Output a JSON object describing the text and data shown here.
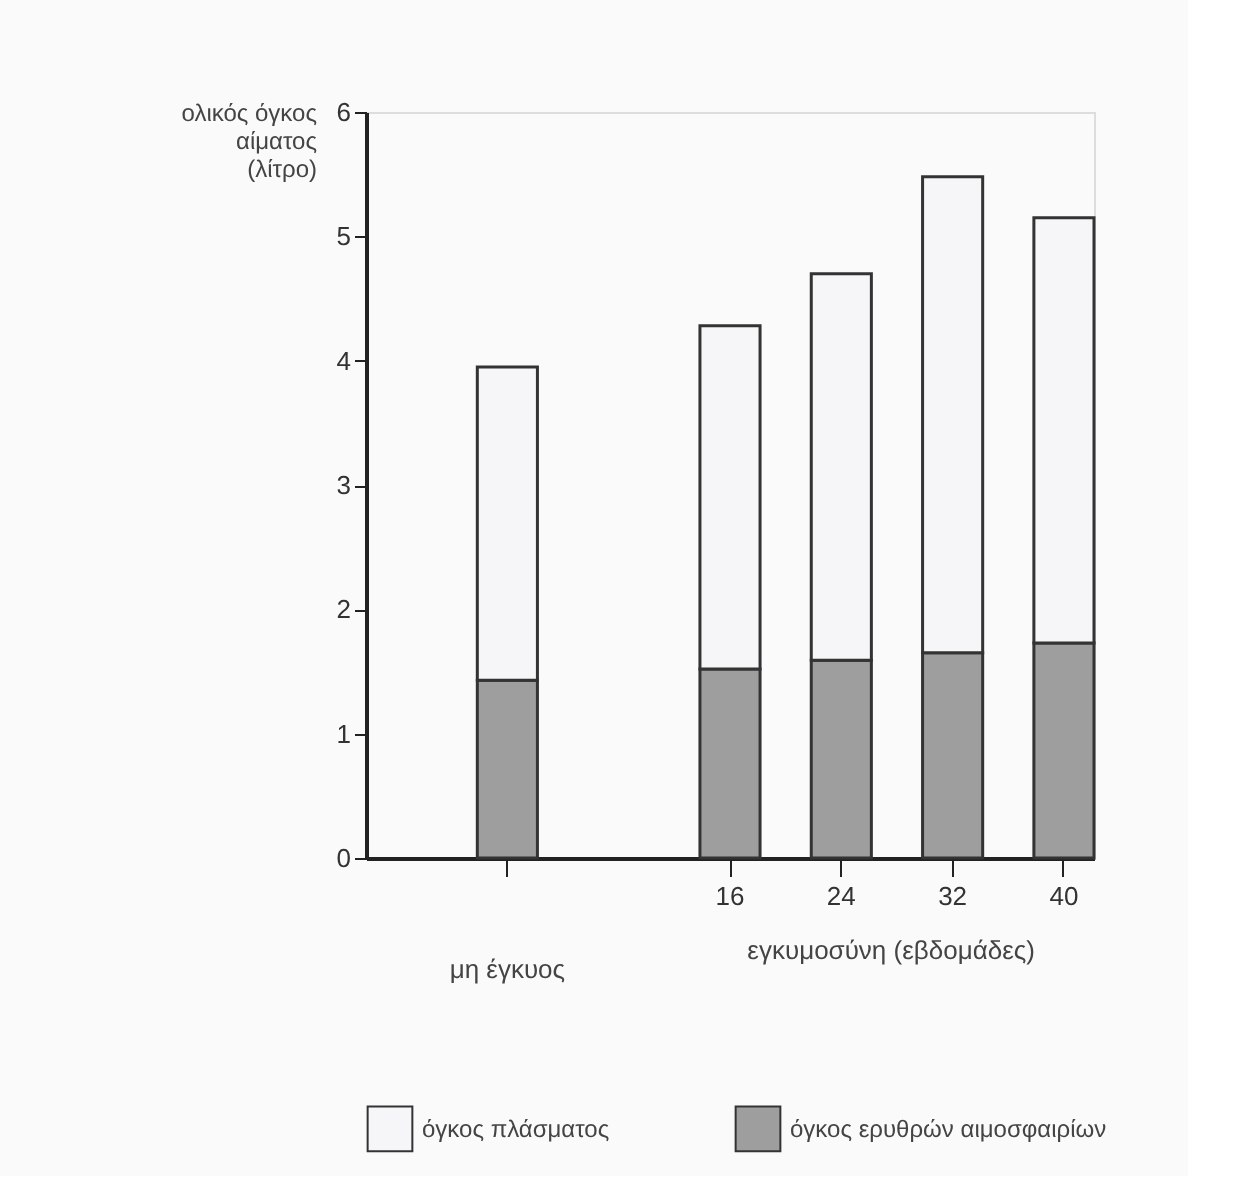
{
  "chart_data": {
    "type": "bar",
    "stacked": true,
    "categories": [
      null,
      null,
      "16",
      "24",
      "32",
      "40"
    ],
    "series": [
      {
        "name": "όγκος ερυθρών αιμοσφαιρίων",
        "color": "#9e9e9e",
        "values": [
          1.43,
          null,
          1.52,
          1.59,
          1.65,
          1.73
        ]
      },
      {
        "name": "όγκος πλάσματος",
        "color": "#f6f6f8",
        "values": [
          2.52,
          null,
          2.76,
          3.11,
          3.83,
          3.42
        ]
      }
    ],
    "ylabel": "ολικός όγκος αίματος (λίτρο)",
    "xlabel": "εγκυμοσύνη (εβδομάδες)",
    "annotations": [
      "μη έγκυος"
    ],
    "ylim": [
      0,
      6
    ],
    "yticks": [
      0,
      1,
      2,
      3,
      4,
      5,
      6
    ],
    "grid": false,
    "legend": "bottom"
  }
}
